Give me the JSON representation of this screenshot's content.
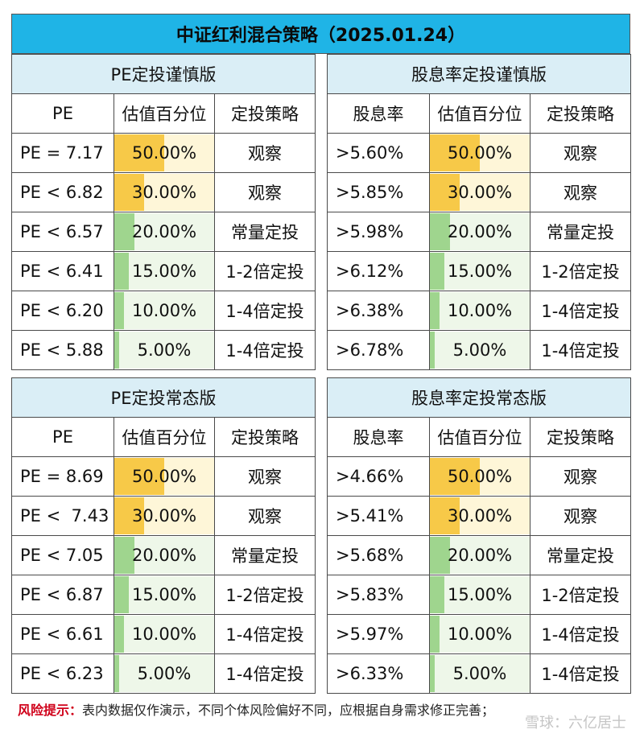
{
  "title": "中证红利混合策略（2025.01.24）",
  "colors": {
    "header_blue": "#1fb4e6",
    "subheader": "#daeef6",
    "yellow_bar": "#f7c948",
    "yellow_bg": "#fef6d8",
    "green_bar": "#9fd58e",
    "green_bg": "#eef7e9"
  },
  "panels": [
    {
      "title": "PE定投谨慎版",
      "headers": [
        "PE",
        "估值百分位",
        "定投策略"
      ],
      "rows": [
        {
          "metric": "PE = 7.17",
          "percentile": "50.00%",
          "pct": 50,
          "strategy": "观察",
          "level": "yellow"
        },
        {
          "metric": "PE < 6.82",
          "percentile": "30.00%",
          "pct": 30,
          "strategy": "观察",
          "level": "yellow"
        },
        {
          "metric": "PE < 6.57",
          "percentile": "20.00%",
          "pct": 20,
          "strategy": "常量定投",
          "level": "green"
        },
        {
          "metric": "PE < 6.41",
          "percentile": "15.00%",
          "pct": 15,
          "strategy": "1-2倍定投",
          "level": "green"
        },
        {
          "metric": "PE < 6.20",
          "percentile": "10.00%",
          "pct": 10,
          "strategy": "1-4倍定投",
          "level": "green"
        },
        {
          "metric": "PE < 5.88",
          "percentile": "5.00%",
          "pct": 5,
          "strategy": "1-4倍定投",
          "level": "green"
        }
      ]
    },
    {
      "title": "股息率定投谨慎版",
      "headers": [
        "股息率",
        "估值百分位",
        "定投策略"
      ],
      "rows": [
        {
          "metric": ">5.60%",
          "percentile": "50.00%",
          "pct": 50,
          "strategy": "观察",
          "level": "yellow"
        },
        {
          "metric": ">5.85%",
          "percentile": "30.00%",
          "pct": 30,
          "strategy": "观察",
          "level": "yellow"
        },
        {
          "metric": ">5.98%",
          "percentile": "20.00%",
          "pct": 20,
          "strategy": "常量定投",
          "level": "green"
        },
        {
          "metric": ">6.12%",
          "percentile": "15.00%",
          "pct": 15,
          "strategy": "1-2倍定投",
          "level": "green"
        },
        {
          "metric": ">6.38%",
          "percentile": "10.00%",
          "pct": 10,
          "strategy": "1-4倍定投",
          "level": "green"
        },
        {
          "metric": ">6.78%",
          "percentile": "5.00%",
          "pct": 5,
          "strategy": "1-4倍定投",
          "level": "green"
        }
      ]
    },
    {
      "title": "PE定投常态版",
      "headers": [
        "PE",
        "估值百分位",
        "定投策略"
      ],
      "rows": [
        {
          "metric": "PE = 8.69",
          "percentile": "50.00%",
          "pct": 50,
          "strategy": "观察",
          "level": "yellow"
        },
        {
          "metric": "PE <  7.43",
          "percentile": "30.00%",
          "pct": 30,
          "strategy": "观察",
          "level": "yellow"
        },
        {
          "metric": "PE < 7.05",
          "percentile": "20.00%",
          "pct": 20,
          "strategy": "常量定投",
          "level": "green"
        },
        {
          "metric": "PE < 6.87",
          "percentile": "15.00%",
          "pct": 15,
          "strategy": "1-2倍定投",
          "level": "green"
        },
        {
          "metric": "PE < 6.61",
          "percentile": "10.00%",
          "pct": 10,
          "strategy": "1-4倍定投",
          "level": "green"
        },
        {
          "metric": "PE < 6.23",
          "percentile": "5.00%",
          "pct": 5,
          "strategy": "1-4倍定投",
          "level": "green"
        }
      ]
    },
    {
      "title": "股息率定投常态版",
      "headers": [
        "股息率",
        "估值百分位",
        "定投策略"
      ],
      "rows": [
        {
          "metric": ">4.66%",
          "percentile": "50.00%",
          "pct": 50,
          "strategy": "观察",
          "level": "yellow"
        },
        {
          "metric": ">5.41%",
          "percentile": "30.00%",
          "pct": 30,
          "strategy": "观察",
          "level": "yellow"
        },
        {
          "metric": ">5.68%",
          "percentile": "20.00%",
          "pct": 20,
          "strategy": "常量定投",
          "level": "green"
        },
        {
          "metric": ">5.83%",
          "percentile": "15.00%",
          "pct": 15,
          "strategy": "1-2倍定投",
          "level": "green"
        },
        {
          "metric": ">5.97%",
          "percentile": "10.00%",
          "pct": 10,
          "strategy": "1-4倍定投",
          "level": "green"
        },
        {
          "metric": ">6.33%",
          "percentile": "5.00%",
          "pct": 5,
          "strategy": "1-4倍定投",
          "level": "green"
        }
      ]
    }
  ],
  "footer": {
    "label": "风险提示：",
    "text": "表内数据仅作演示，不同个体风险偏好不同，应根据自身需求修正完善；"
  },
  "watermark": "雪球：六亿居士"
}
